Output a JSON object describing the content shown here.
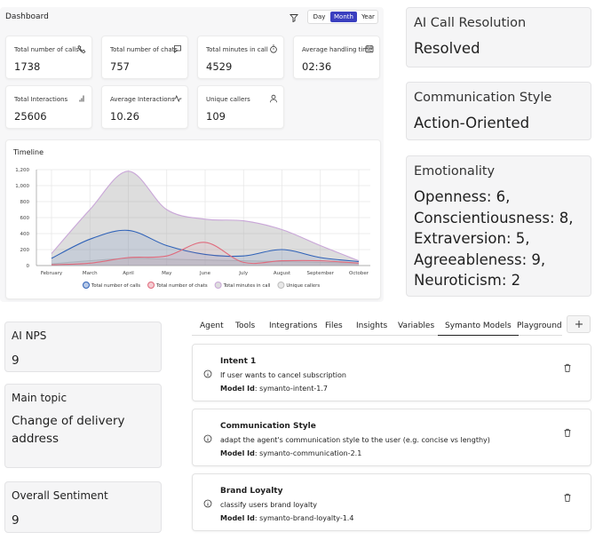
{
  "dashboard": {
    "title": "Dashboard",
    "periods": [
      "Day",
      "Month",
      "Year"
    ],
    "active_period": 1,
    "stats": [
      {
        "label": "Total number of calls",
        "value": "1738"
      },
      {
        "label": "Total number of chats",
        "value": "757"
      },
      {
        "label": "Total minutes in call",
        "value": "4529"
      },
      {
        "label": "Average handling time",
        "value": "02:36"
      },
      {
        "label": "Total Interactions",
        "value": "25606"
      },
      {
        "label": "Average Interactions",
        "value": "10.26"
      },
      {
        "label": "Unique callers",
        "value": "109"
      }
    ]
  },
  "chart_data": {
    "type": "area",
    "title": "Timeline",
    "categories": [
      "February",
      "March",
      "April",
      "May",
      "June",
      "July",
      "August",
      "September",
      "October"
    ],
    "series": [
      {
        "name": "Total number of calls",
        "color": "#2f62b8",
        "values": [
          90,
          330,
          440,
          250,
          140,
          120,
          200,
          100,
          50
        ]
      },
      {
        "name": "Total number of chats",
        "color": "#e06a7c",
        "values": [
          10,
          30,
          100,
          120,
          290,
          40,
          60,
          60,
          30
        ]
      },
      {
        "name": "Total minutes in call",
        "color": "#c9a6d8",
        "values": [
          150,
          700,
          1180,
          700,
          580,
          560,
          450,
          250,
          60
        ]
      },
      {
        "name": "Unique callers",
        "color": "#bdbdbd",
        "values": [
          20,
          60,
          90,
          80,
          70,
          60,
          50,
          40,
          30
        ]
      }
    ],
    "ylim": [
      0,
      1200
    ],
    "yticks": [
      0,
      200,
      400,
      600,
      800,
      {
        "value": 1000,
        "label": "1,000"
      },
      {
        "value": 1200,
        "label": "1,200"
      }
    ],
    "grid": true
  },
  "right_cards": [
    {
      "title": "AI Call Resolution",
      "lines": [
        "Resolved"
      ]
    },
    {
      "title": "Communication Style",
      "lines": [
        "Action-Oriented"
      ]
    },
    {
      "title": "Emotionality",
      "lines": [
        "Openness: 6,",
        "Conscientiousness: 8,",
        "Extraversion: 5,",
        "Agreeableness: 9,",
        "Neuroticism: 2"
      ]
    }
  ],
  "left_cards": [
    {
      "title": "AI NPS",
      "value": "9"
    },
    {
      "title": "Main topic",
      "value": "Change of delivery address"
    },
    {
      "title": "Overall Sentiment",
      "value": "9"
    }
  ],
  "tabs": {
    "items": [
      "Agent",
      "Tools",
      "Integrations",
      "Files",
      "Insights",
      "Variables",
      "Symanto Models",
      "Playground"
    ],
    "active": 6
  },
  "models": [
    {
      "title": "Intent 1",
      "description": "If user wants to cancel subscription",
      "id_label": "Model Id",
      "id_value": ": symanto-intent-1.7"
    },
    {
      "title": "Communication Style",
      "description": "adapt the agent's communication style to the user (e.g. concise vs lengthy)",
      "id_label": "Model Id",
      "id_value": ": symanto-communication-2.1"
    },
    {
      "title": "Brand Loyalty",
      "description": "classify users brand loyalty",
      "id_label": "Model Id",
      "id_value": ": symanto-brand-loyalty-1.4"
    }
  ]
}
